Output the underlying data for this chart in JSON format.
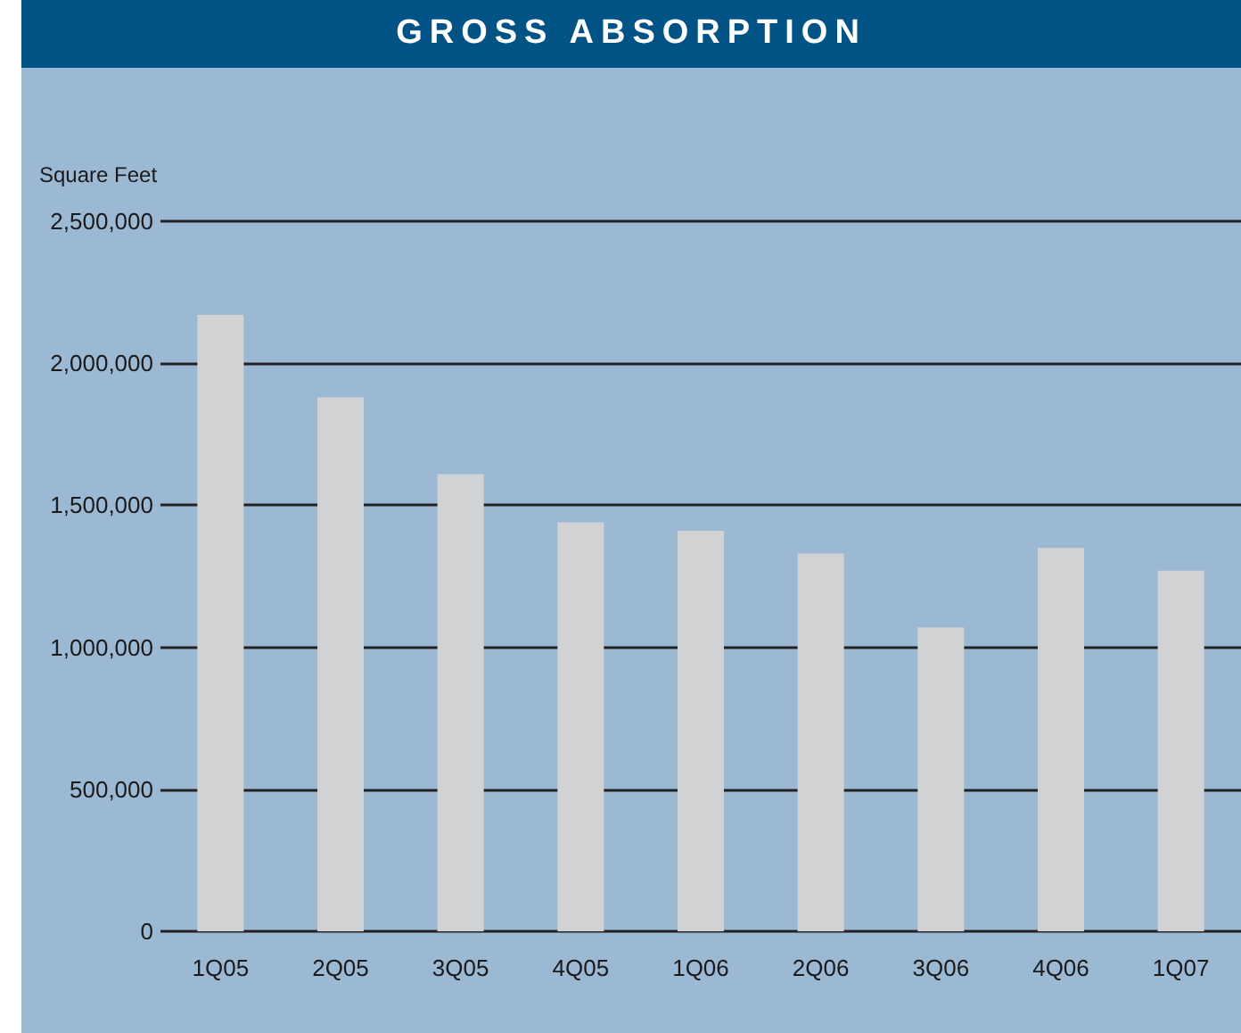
{
  "chart_data": {
    "type": "bar",
    "title": "GROSS ABSORPTION",
    "ylabel": "Square Feet",
    "categories": [
      "1Q05",
      "2Q05",
      "3Q05",
      "4Q05",
      "1Q06",
      "2Q06",
      "3Q06",
      "4Q06",
      "1Q07"
    ],
    "values": [
      2170000,
      1880000,
      1610000,
      1440000,
      1410000,
      1330000,
      1070000,
      1350000,
      1270000
    ],
    "color": "#d1d2d4",
    "ylim": [
      0,
      2500000
    ],
    "yticks": [
      0,
      {
        "value": 500000,
        "label": "500,000"
      },
      {
        "value": 1000000,
        "label": "1,000,000"
      },
      {
        "value": 1500000,
        "label": "1,500,000"
      },
      {
        "value": 2000000,
        "label": "2,000,000"
      },
      {
        "value": 2500000,
        "label": "2,500,000"
      }
    ],
    "grid": true
  }
}
